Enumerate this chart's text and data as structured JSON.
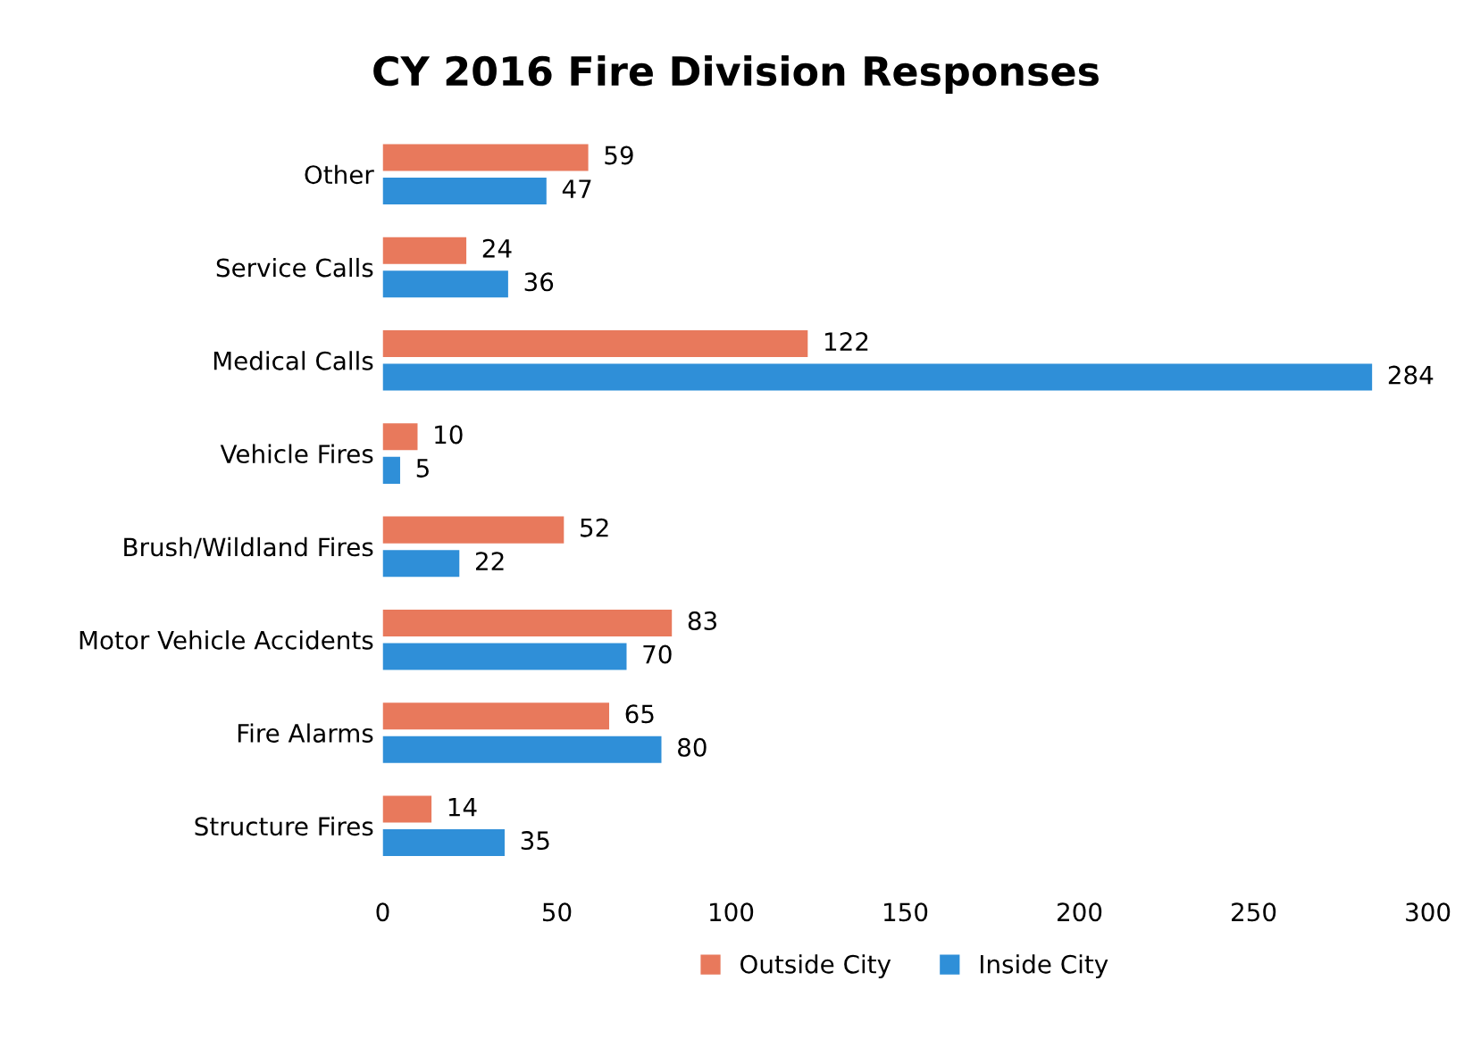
{
  "chart_data": {
    "type": "bar",
    "orientation": "horizontal",
    "title": "CY 2016 Fire Division Responses",
    "categories": [
      "Other",
      "Service Calls",
      "Medical Calls",
      "Vehicle Fires",
      "Brush/Wildland Fires",
      "Motor Vehicle Accidents",
      "Fire Alarms",
      "Structure Fires"
    ],
    "series": [
      {
        "name": "Outside City",
        "color": "#e8795c",
        "values": [
          59,
          24,
          122,
          10,
          52,
          83,
          65,
          14
        ]
      },
      {
        "name": "Inside City",
        "color": "#2f8fd8",
        "values": [
          47,
          36,
          284,
          5,
          22,
          70,
          80,
          35
        ]
      }
    ],
    "xlim": [
      0,
      300
    ],
    "xticks": [
      0,
      50,
      100,
      150,
      200,
      250,
      300
    ],
    "data_labels": true,
    "legend": "bottom",
    "grid": false
  }
}
